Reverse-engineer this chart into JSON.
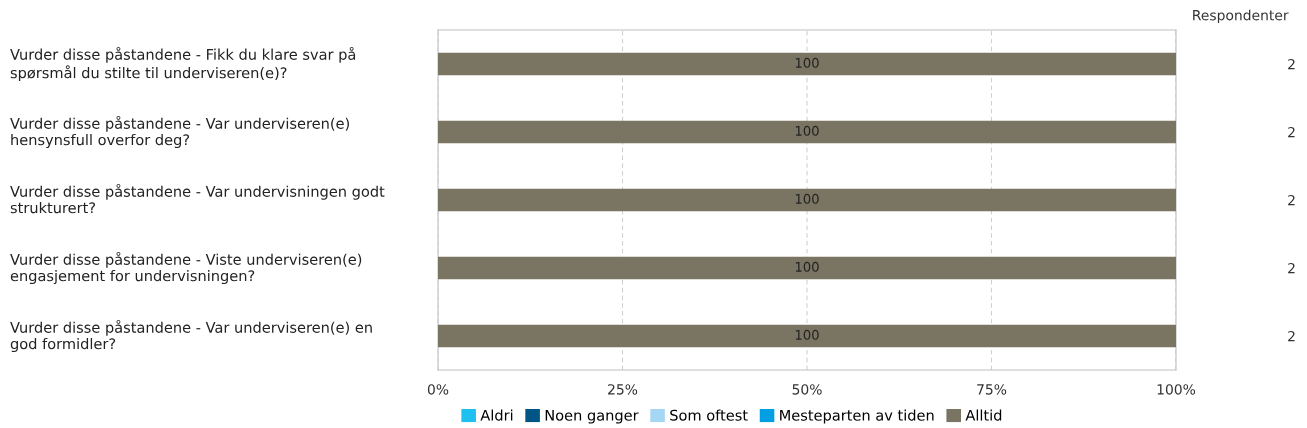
{
  "chart_data": {
    "type": "bar",
    "orientation": "horizontal",
    "stacked": true,
    "categories": [
      "Vurder disse påstandene - Fikk du klare svar på\nspørsmål du stilte til underviseren(e)?",
      "Vurder disse påstandene - Var underviseren(e)\nhensynsfull overfor deg?",
      "Vurder disse påstandene - Var undervisningen godt\nstrukturert?",
      "Vurder disse påstandene - Viste underviseren(e)\nengasjement for undervisningen?",
      "Vurder disse påstandene - Var underviseren(e) en\ngod formidler?"
    ],
    "series": [
      {
        "name": "Aldri",
        "color": "#1ec0f0",
        "values": [
          0,
          0,
          0,
          0,
          0
        ]
      },
      {
        "name": "Noen ganger",
        "color": "#005587",
        "values": [
          0,
          0,
          0,
          0,
          0
        ]
      },
      {
        "name": "Som oftest",
        "color": "#a5d7f5",
        "values": [
          0,
          0,
          0,
          0,
          0
        ]
      },
      {
        "name": "Mesteparten av tiden",
        "color": "#009fe3",
        "values": [
          0,
          0,
          0,
          0,
          0
        ]
      },
      {
        "name": "Alltid",
        "color": "#7a7562",
        "values": [
          100,
          100,
          100,
          100,
          100
        ],
        "value_labels": [
          "100",
          "100",
          "100",
          "100",
          "100"
        ]
      }
    ],
    "y2label": "Respondenter",
    "y2_categories": [
      "2",
      "2",
      "2",
      "2",
      "2"
    ],
    "xlim": [
      0,
      100
    ],
    "xticks": [
      {
        "value": 0,
        "label": "0%"
      },
      {
        "value": 25,
        "label": "25%"
      },
      {
        "value": 50,
        "label": "50%"
      },
      {
        "value": 75,
        "label": "75%"
      },
      {
        "value": 100,
        "label": "100%"
      }
    ],
    "grid": "x",
    "legend": "bottom"
  }
}
